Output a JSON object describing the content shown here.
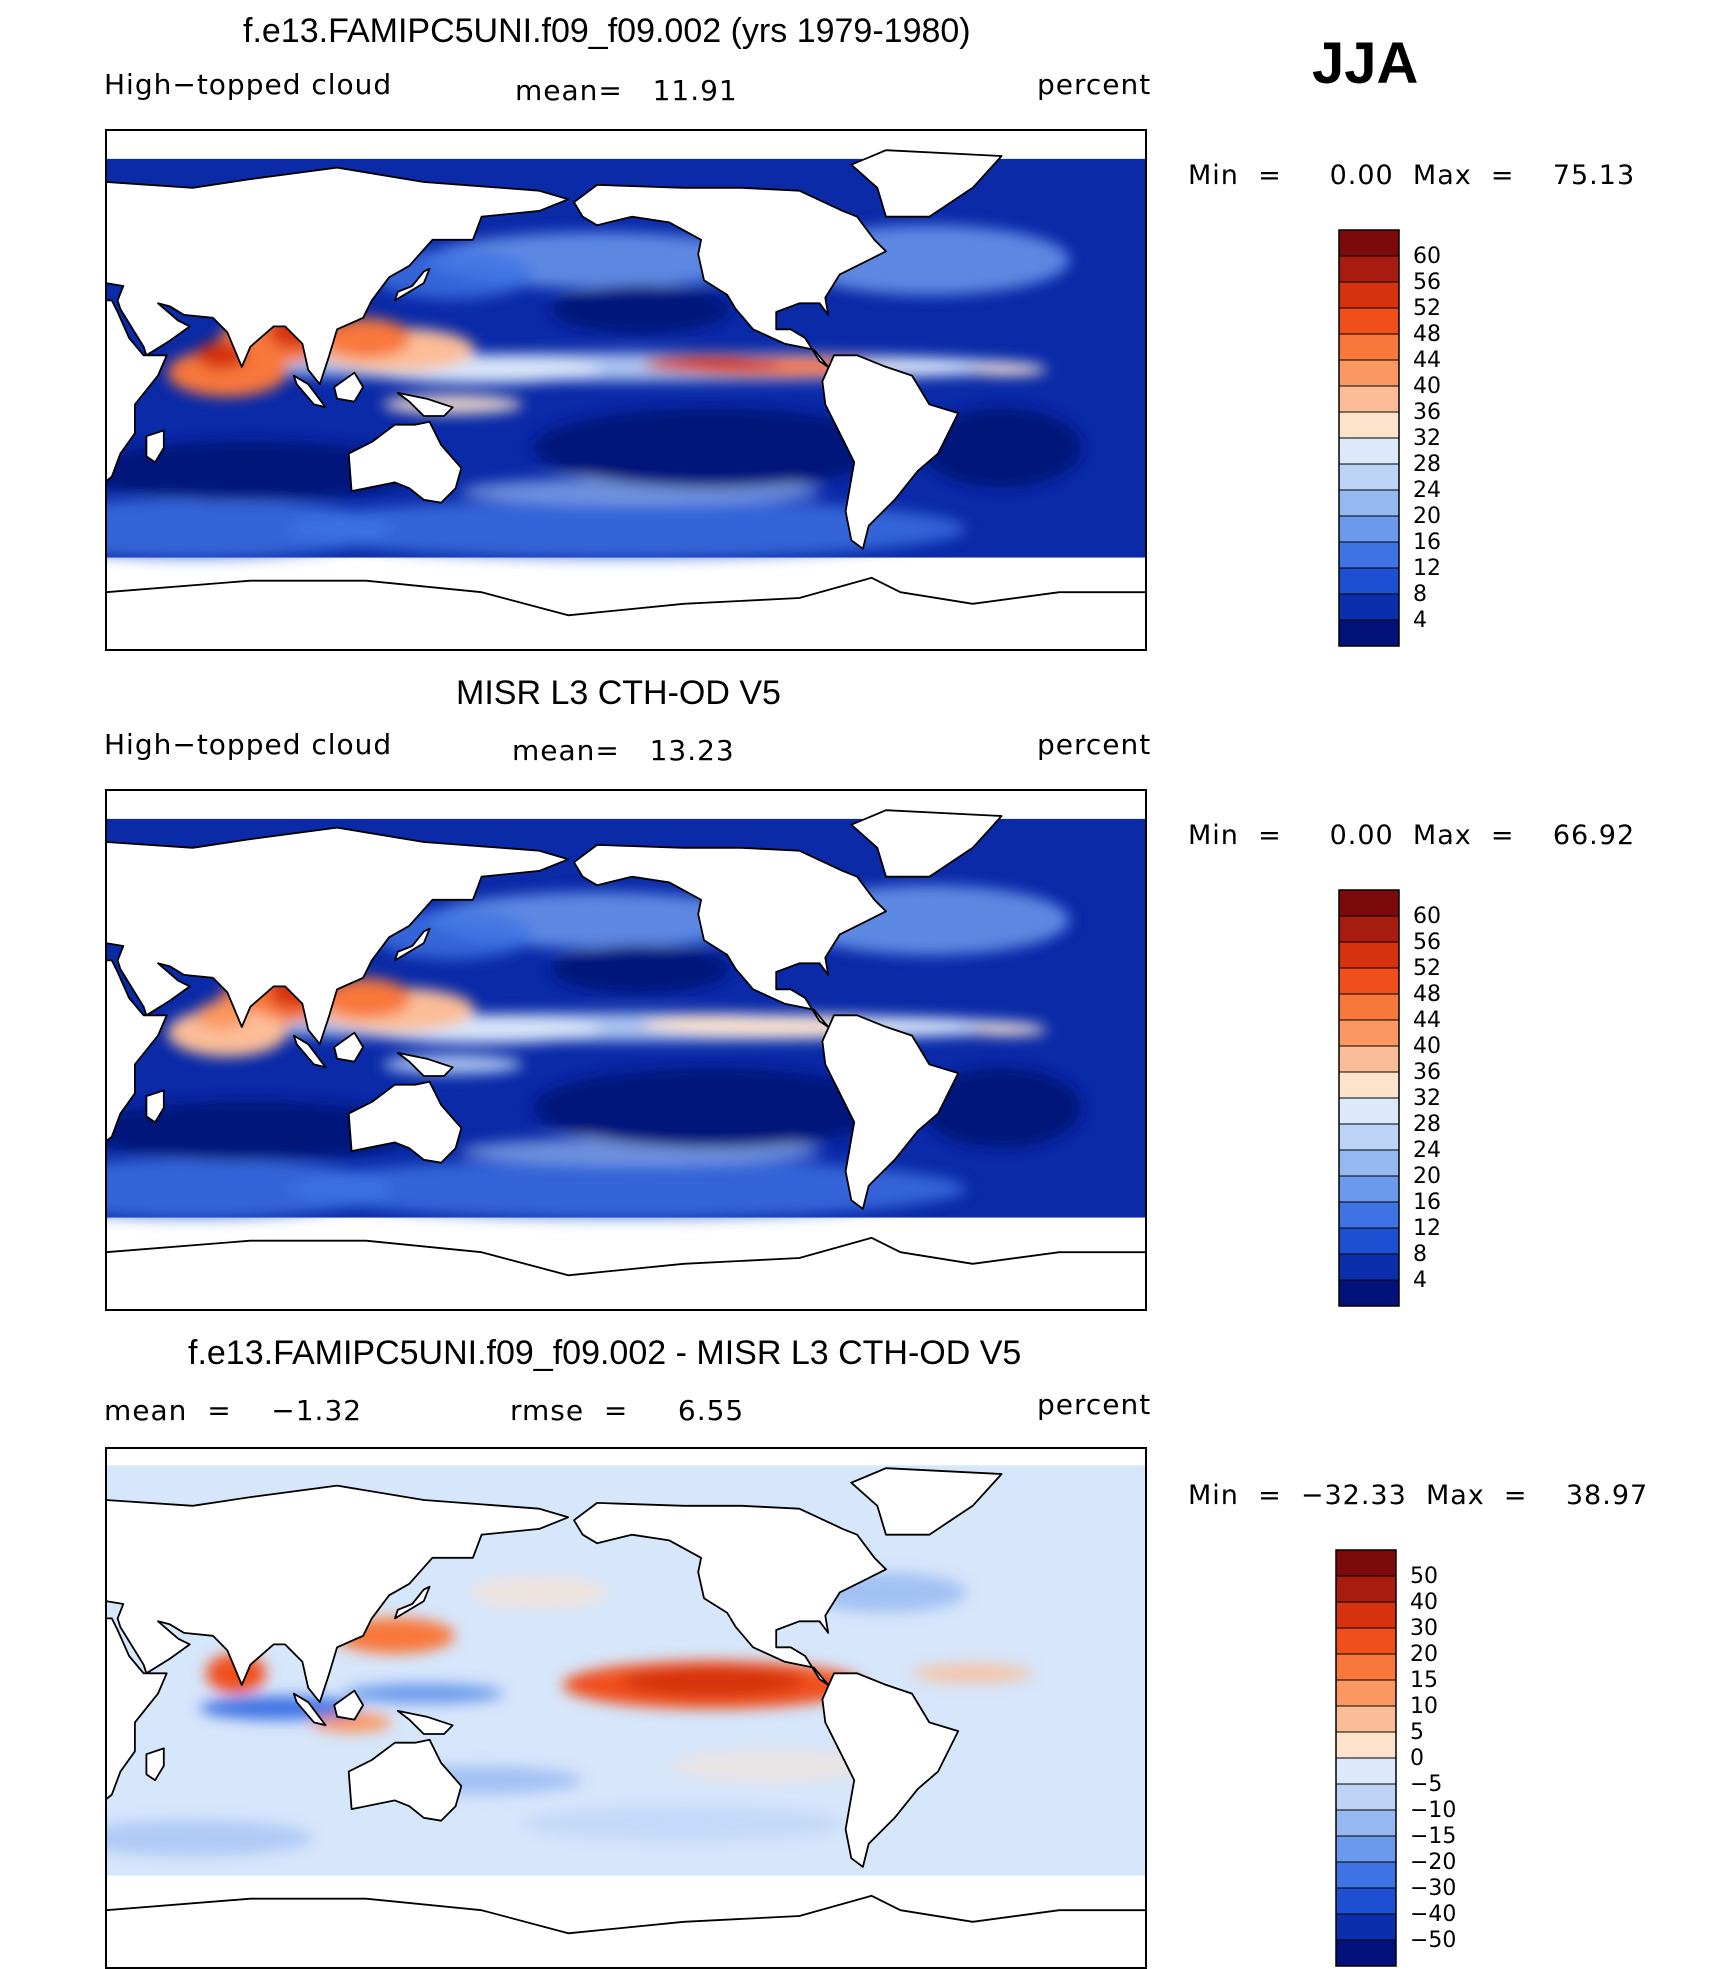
{
  "season": "JJA",
  "colors": {
    "ocean_base": "#0a2aa8",
    "land": "#ffffff",
    "coast": "#000000",
    "diff_base": "#d6e6fb"
  },
  "panels": [
    {
      "title": "f.e13.FAMIPC5UNI.f09_f09.002 (yrs 1979-1980)",
      "left": "High−topped cloud",
      "middle": "mean=   11.91",
      "right": "percent",
      "minmax": "Min  =     0.00  Max  =    75.13",
      "variant": "model"
    },
    {
      "title": "MISR L3 CTH-OD V5",
      "left": "High−topped cloud",
      "middle": "mean=   13.23",
      "right": "percent",
      "minmax": "Min  =     0.00  Max  =    66.92",
      "variant": "obs"
    },
    {
      "title": "f.e13.FAMIPC5UNI.f09_f09.002 - MISR L3 CTH-OD V5",
      "left": "mean  =    −1.32",
      "middle": "rmse  =     6.55",
      "right": "percent",
      "minmax": "Min  =  −32.33  Max  =    38.97",
      "variant": "diff"
    }
  ],
  "chart_data": [
    {
      "type": "heatmap",
      "title": "f.e13.FAMIPC5UNI.f09_f09.002 (yrs 1979-1980)",
      "field": "High−topped cloud",
      "units": "percent",
      "mean": 11.91,
      "min": 0.0,
      "max": 75.13,
      "colorbar": {
        "labels": [
          "60",
          "56",
          "52",
          "48",
          "44",
          "40",
          "36",
          "32",
          "28",
          "24",
          "20",
          "16",
          "12",
          "8",
          "4"
        ],
        "colors": [
          "#7c0a0a",
          "#a81c10",
          "#d6320f",
          "#f04f1c",
          "#f8773a",
          "#fb9762",
          "#fbbd97",
          "#fde2cc",
          "#dce9fb",
          "#bcd3f6",
          "#95b8f1",
          "#6b99ec",
          "#3f73e4",
          "#1c4fd1",
          "#0b2fac",
          "#03127a"
        ]
      }
    },
    {
      "type": "heatmap",
      "title": "MISR L3 CTH-OD V5",
      "field": "High−topped cloud",
      "units": "percent",
      "mean": 13.23,
      "min": 0.0,
      "max": 66.92,
      "colorbar": {
        "labels": [
          "60",
          "56",
          "52",
          "48",
          "44",
          "40",
          "36",
          "32",
          "28",
          "24",
          "20",
          "16",
          "12",
          "8",
          "4"
        ],
        "colors": [
          "#7c0a0a",
          "#a81c10",
          "#d6320f",
          "#f04f1c",
          "#f8773a",
          "#fb9762",
          "#fbbd97",
          "#fde2cc",
          "#dce9fb",
          "#bcd3f6",
          "#95b8f1",
          "#6b99ec",
          "#3f73e4",
          "#1c4fd1",
          "#0b2fac",
          "#03127a"
        ]
      }
    },
    {
      "type": "heatmap",
      "title": "f.e13.FAMIPC5UNI.f09_f09.002 - MISR L3 CTH-OD V5",
      "units": "percent",
      "mean": -1.32,
      "rmse": 6.55,
      "min": -32.33,
      "max": 38.97,
      "colorbar": {
        "labels": [
          "50",
          "40",
          "30",
          "20",
          "15",
          "10",
          "5",
          "0",
          "−5",
          "−10",
          "−15",
          "−20",
          "−30",
          "−40",
          "−50"
        ],
        "colors": [
          "#7c0a0a",
          "#a81c10",
          "#d6320f",
          "#f04f1c",
          "#f8773a",
          "#fb9762",
          "#fbbd97",
          "#fde2cc",
          "#dde9fb",
          "#bcd3f6",
          "#95b8f1",
          "#6b99ec",
          "#3f73e4",
          "#1c4fd1",
          "#0b2fac",
          "#03127a"
        ]
      }
    }
  ]
}
